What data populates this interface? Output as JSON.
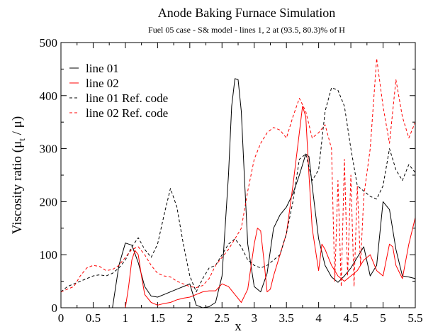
{
  "chart_data": {
    "type": "line",
    "title": "Anode Baking Furnace Simulation",
    "subtitle": "Fuel 05 case - S& model - lines 1, 2 at (93.5, 80.3)% of H",
    "xlabel": "x",
    "ylabel_main": "Viscosity ratio (μ",
    "ylabel_sub": "t",
    "ylabel_end": " / μ)",
    "xlim": [
      0,
      5.5
    ],
    "ylim": [
      0,
      500
    ],
    "xticks": [
      "0",
      "0.5",
      "1",
      "1.5",
      "2",
      "2.5",
      "3",
      "3.5",
      "4",
      "4.5",
      "5",
      "5.5"
    ],
    "yticks": [
      "0",
      "100",
      "200",
      "300",
      "400",
      "500"
    ],
    "legend_position": "top-left",
    "series": [
      {
        "name": "line 01",
        "color": "#000000",
        "dash": "solid",
        "x": [
          0.8,
          0.9,
          1.0,
          1.1,
          1.2,
          1.3,
          1.4,
          1.5,
          1.6,
          1.7,
          1.8,
          1.9,
          2.0,
          2.1,
          2.2,
          2.3,
          2.4,
          2.5,
          2.6,
          2.65,
          2.7,
          2.75,
          2.8,
          2.85,
          2.9,
          3.0,
          3.1,
          3.2,
          3.3,
          3.4,
          3.5,
          3.6,
          3.7,
          3.8,
          3.85,
          3.9,
          4.0,
          4.1,
          4.2,
          4.3,
          4.4,
          4.5,
          4.6,
          4.7,
          4.8,
          4.9,
          5.0,
          5.1,
          5.2,
          5.3,
          5.4,
          5.5
        ],
        "y": [
          0,
          80,
          122,
          118,
          85,
          40,
          22,
          20,
          25,
          30,
          35,
          40,
          45,
          5,
          0,
          2,
          10,
          60,
          250,
          380,
          432,
          430,
          370,
          240,
          120,
          40,
          30,
          65,
          150,
          175,
          190,
          215,
          250,
          290,
          285,
          230,
          130,
          80,
          58,
          48,
          60,
          75,
          95,
          115,
          60,
          80,
          200,
          185,
          110,
          60,
          58,
          55
        ]
      },
      {
        "name": "line 02",
        "color": "#ff0000",
        "dash": "solid",
        "x": [
          1.0,
          1.05,
          1.1,
          1.15,
          1.2,
          1.25,
          1.3,
          1.4,
          1.5,
          1.6,
          1.7,
          1.8,
          1.9,
          2.0,
          2.1,
          2.2,
          2.3,
          2.4,
          2.5,
          2.6,
          2.7,
          2.8,
          2.9,
          3.0,
          3.05,
          3.1,
          3.15,
          3.2,
          3.25,
          3.3,
          3.4,
          3.5,
          3.6,
          3.7,
          3.75,
          3.8,
          3.85,
          3.9,
          4.0,
          4.05,
          4.1,
          4.2,
          4.3,
          4.4,
          4.5,
          4.6,
          4.7,
          4.8,
          4.9,
          5.0,
          5.1,
          5.15,
          5.2,
          5.3,
          5.4,
          5.5
        ],
        "y": [
          0,
          40,
          90,
          108,
          100,
          60,
          25,
          10,
          5,
          8,
          10,
          15,
          18,
          20,
          25,
          30,
          32,
          32,
          45,
          40,
          25,
          10,
          35,
          120,
          150,
          145,
          90,
          30,
          35,
          60,
          100,
          140,
          230,
          330,
          380,
          360,
          250,
          150,
          70,
          120,
          110,
          80,
          60,
          50,
          60,
          70,
          90,
          100,
          70,
          60,
          120,
          115,
          80,
          55,
          120,
          170
        ]
      },
      {
        "name": "line 01 Ref. code",
        "color": "#000000",
        "dash": "dashed",
        "x": [
          0.0,
          0.1,
          0.2,
          0.3,
          0.4,
          0.5,
          0.6,
          0.7,
          0.8,
          0.9,
          1.0,
          1.1,
          1.2,
          1.3,
          1.4,
          1.5,
          1.6,
          1.7,
          1.8,
          1.9,
          2.0,
          2.1,
          2.2,
          2.3,
          2.4,
          2.5,
          2.6,
          2.7,
          2.8,
          2.9,
          3.0,
          3.1,
          3.2,
          3.3,
          3.4,
          3.5,
          3.6,
          3.7,
          3.8,
          3.9,
          4.0,
          4.1,
          4.2,
          4.3,
          4.4,
          4.5,
          4.6,
          4.7,
          4.8,
          4.9,
          5.0,
          5.1,
          5.2,
          5.3,
          5.4,
          5.5
        ],
        "y": [
          30,
          40,
          45,
          50,
          55,
          60,
          62,
          60,
          65,
          75,
          90,
          115,
          132,
          110,
          95,
          120,
          175,
          225,
          190,
          120,
          60,
          30,
          55,
          75,
          80,
          100,
          120,
          130,
          115,
          90,
          80,
          75,
          80,
          90,
          100,
          140,
          200,
          280,
          290,
          240,
          260,
          370,
          415,
          410,
          380,
          300,
          230,
          220,
          210,
          205,
          230,
          300,
          260,
          240,
          270,
          255
        ]
      },
      {
        "name": "line 02 Ref. code",
        "color": "#ff0000",
        "dash": "dashed",
        "x": [
          0.0,
          0.1,
          0.2,
          0.3,
          0.4,
          0.5,
          0.6,
          0.7,
          0.8,
          0.9,
          1.0,
          1.1,
          1.2,
          1.3,
          1.4,
          1.5,
          1.6,
          1.7,
          1.8,
          1.9,
          2.0,
          2.1,
          2.2,
          2.3,
          2.4,
          2.5,
          2.6,
          2.7,
          2.8,
          2.9,
          3.0,
          3.1,
          3.2,
          3.3,
          3.4,
          3.5,
          3.6,
          3.7,
          3.8,
          3.9,
          4.0,
          4.1,
          4.2,
          4.25,
          4.3,
          4.35,
          4.4,
          4.45,
          4.5,
          4.55,
          4.6,
          4.65,
          4.7,
          4.8,
          4.9,
          5.0,
          5.1,
          5.2,
          5.3,
          5.4,
          5.5
        ],
        "y": [
          30,
          35,
          40,
          60,
          75,
          80,
          78,
          70,
          72,
          80,
          95,
          110,
          115,
          100,
          80,
          65,
          60,
          58,
          50,
          45,
          40,
          38,
          42,
          55,
          80,
          95,
          110,
          130,
          150,
          220,
          280,
          310,
          330,
          340,
          335,
          320,
          360,
          395,
          370,
          320,
          330,
          345,
          300,
          50,
          240,
          40,
          280,
          60,
          250,
          40,
          230,
          80,
          210,
          300,
          470,
          380,
          310,
          430,
          360,
          320,
          350
        ]
      }
    ]
  }
}
